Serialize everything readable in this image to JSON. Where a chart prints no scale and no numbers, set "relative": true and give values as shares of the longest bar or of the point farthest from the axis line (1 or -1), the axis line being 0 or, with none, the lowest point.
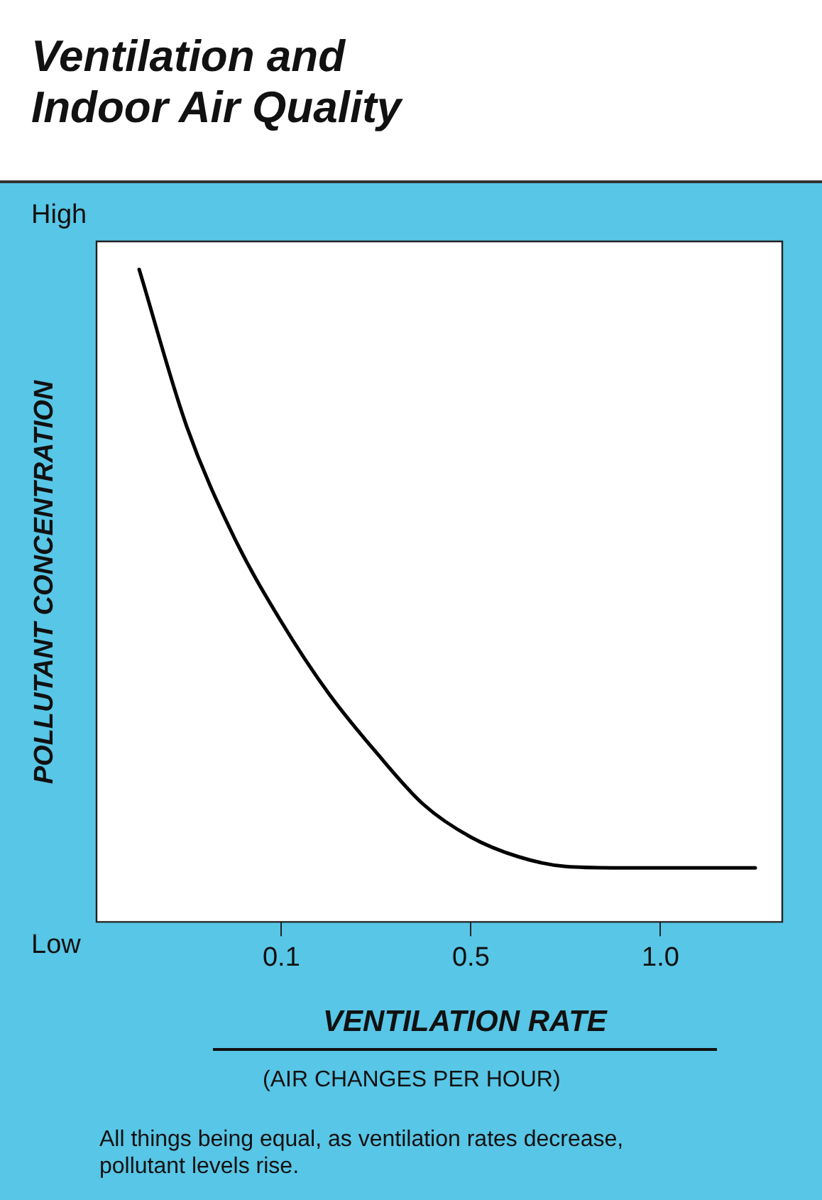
{
  "chart_data": {
    "type": "line",
    "title": "Ventilation and\nIndoor Air Quality",
    "xlabel": "VENTILATION RATE",
    "ylabel": "POLLUTANT CONCENTRATION",
    "annotations": [
      "High",
      "Low",
      "(AIR CHANGES PER HOUR)",
      "All things being equal, as ventilation rates decrease, pollutant levels rise."
    ],
    "categories": [
      null,
      null,
      null,
      "0.1",
      null,
      null,
      null,
      "0.5",
      null,
      null,
      null,
      "1.0",
      null,
      null
    ],
    "relative": true,
    "grid": false,
    "legend": false,
    "marker": "none",
    "line_style": "solid",
    "series": [
      {
        "color": "#000000",
        "values": [
          1,
          0.76,
          0.59,
          0.46,
          0.35,
          0.26,
          0.18,
          0.13,
          0.1,
          0.085,
          0.083,
          0.083,
          0.083,
          0.083
        ]
      }
    ]
  }
}
